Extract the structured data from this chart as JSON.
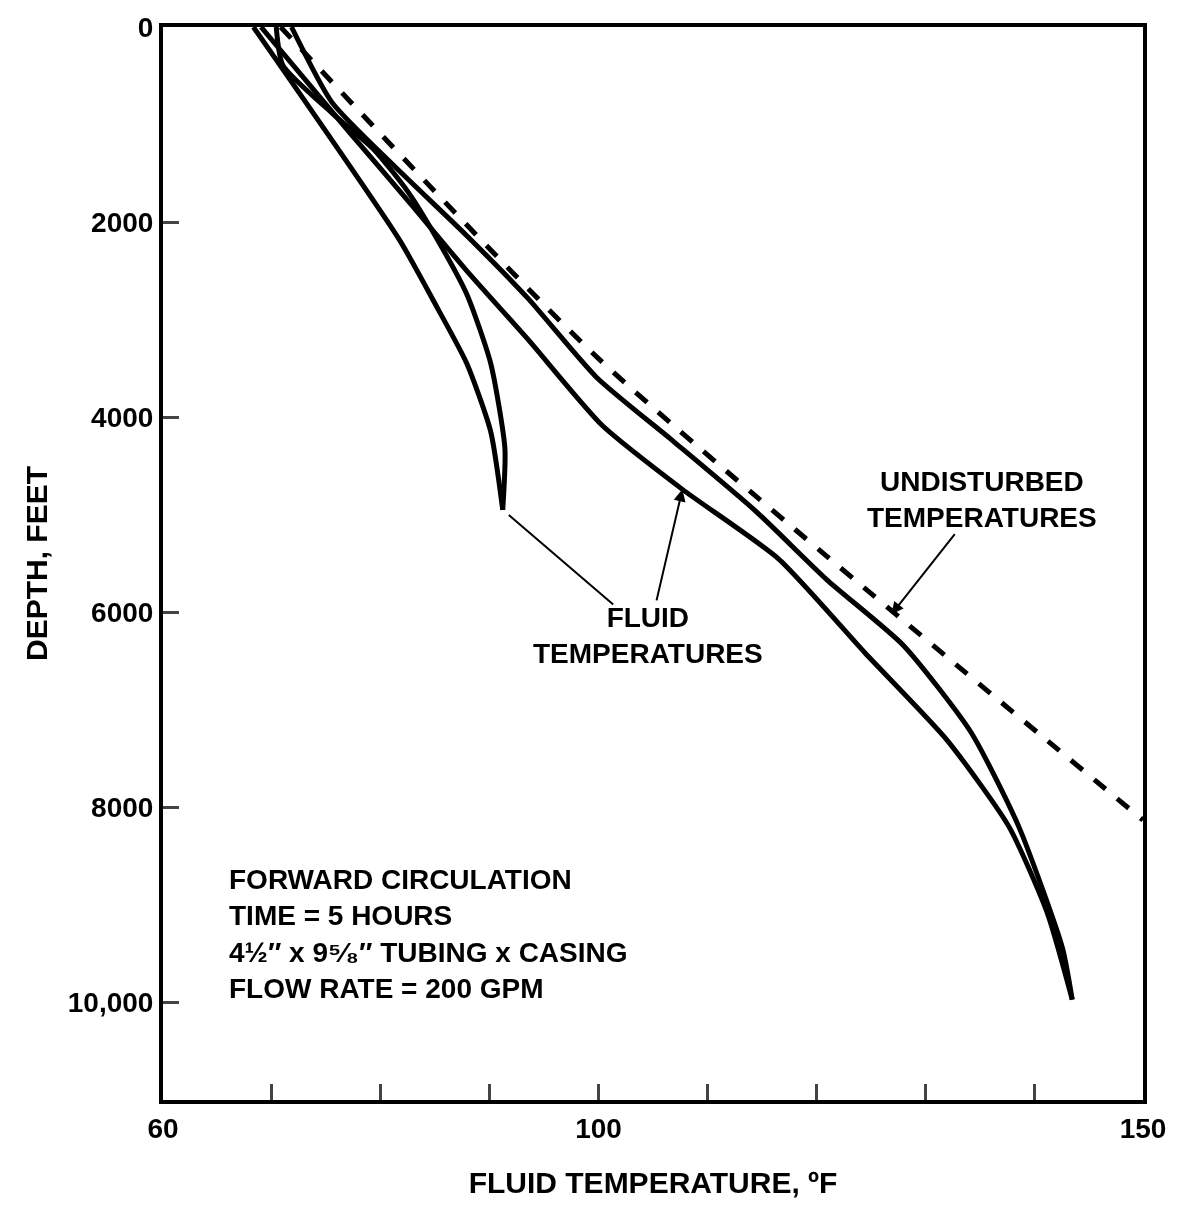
{
  "chart_data": {
    "type": "line",
    "xlabel": "FLUID TEMPERATURE, ºF",
    "ylabel": "DEPTH, FEET",
    "xlim": [
      60,
      150
    ],
    "xticks": [
      60,
      {
        "value": 70,
        "label": null
      },
      {
        "value": 80,
        "label": null
      },
      {
        "value": 90,
        "label": null
      },
      100,
      {
        "value": 110,
        "label": null
      },
      {
        "value": 120,
        "label": null
      },
      {
        "value": 130,
        "label": null
      },
      {
        "value": 140,
        "label": null
      },
      150
    ],
    "ylim": [
      11000,
      0
    ],
    "yticks": [
      0,
      2000,
      4000,
      6000,
      8000,
      {
        "value": 10000,
        "label": "10,000"
      }
    ],
    "marker": "none",
    "series": [
      {
        "color": "#000000",
        "line_style": "solid",
        "x": [
          68.3,
          81.7,
          85.0,
          87.9,
          90.1,
          91.2
        ],
        "values": [
          0,
          2180,
          2840,
          3450,
          4150,
          4950
        ]
      },
      {
        "color": "#000000",
        "line_style": "solid",
        "x": [
          91.2,
          91.4,
          90.1,
          87.9,
          85.0,
          82.5,
          79.4,
          75.5,
          71.0,
          70.4
        ],
        "values": [
          4950,
          4320,
          3450,
          2740,
          2140,
          1690,
          1260,
          880,
          390,
          0
        ]
      },
      {
        "color": "#000000",
        "line_style": "solid",
        "x": [
          69.0,
          77.2,
          82.8,
          87.9,
          93.5,
          100.3,
          107.7,
          116.5,
          124.5,
          132.0,
          137.7,
          141.2,
          143.5
        ],
        "values": [
          0,
          1090,
          1820,
          2500,
          3200,
          4080,
          4740,
          5450,
          6420,
          7310,
          8200,
          9080,
          9970
        ]
      },
      {
        "color": "#000000",
        "line_style": "solid",
        "x": [
          143.5,
          142.6,
          138.6,
          134.2,
          128.0,
          121.0,
          114.4,
          106.9,
          99.8,
          93.5,
          87.9,
          81.1,
          75.5,
          71.8
        ],
        "values": [
          9970,
          9440,
          8200,
          7230,
          6340,
          5670,
          4960,
          4250,
          3590,
          2780,
          2140,
          1410,
          770,
          0
        ]
      },
      {
        "color": "#000000",
        "line_style": "dashed",
        "x": [
          70.8,
          100,
          150
        ],
        "values": [
          0,
          3400,
          8130
        ]
      }
    ],
    "annotations": [
      {
        "text": "FLUID\nTEMPERATURES",
        "x": 107.7,
        "y": 4740
      },
      {
        "text": "UNDISTURBED\nTEMPERATURES",
        "x": 126.9,
        "y": 6020
      },
      "FORWARD CIRCULATION\nTIME = 5 HOURS\n4½″ x 9⁵⁄₈″ TUBING x CASING\nFLOW RATE = 200 GPM"
    ]
  }
}
